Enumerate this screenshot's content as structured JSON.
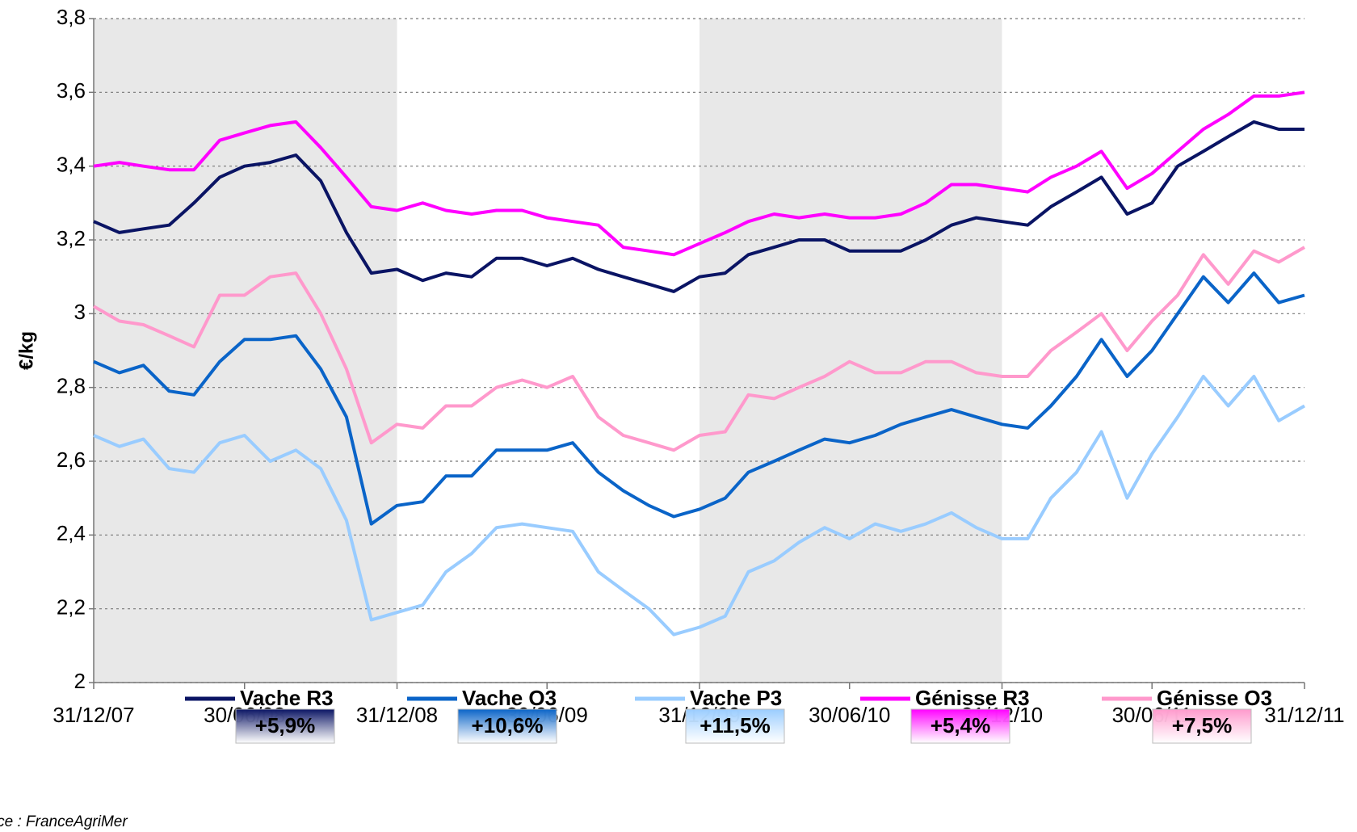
{
  "chart_data": {
    "type": "line",
    "y_label": "€/kg",
    "source": "Source : FranceAgriMer",
    "x": [
      "31/12/07",
      "31/01/08",
      "29/02/08",
      "31/03/08",
      "30/04/08",
      "31/05/08",
      "30/06/08",
      "31/07/08",
      "31/08/08",
      "30/09/08",
      "31/10/08",
      "30/11/08",
      "31/12/08",
      "31/01/09",
      "28/02/09",
      "31/03/09",
      "30/04/09",
      "31/05/09",
      "30/06/09",
      "31/07/09",
      "31/08/09",
      "30/09/09",
      "31/10/09",
      "30/11/09",
      "31/12/09",
      "31/01/10",
      "28/02/10",
      "31/03/10",
      "30/04/10",
      "31/05/10",
      "30/06/10",
      "31/07/10",
      "31/08/10",
      "30/09/10",
      "31/10/10",
      "30/11/10",
      "31/12/10",
      "31/01/11",
      "28/02/11",
      "31/03/11",
      "30/04/11",
      "31/05/11",
      "30/06/11",
      "31/07/11",
      "31/08/11",
      "30/09/11",
      "31/10/11",
      "30/11/11",
      "31/12/11"
    ],
    "xlim": [
      "31/12/07",
      "31/12/11"
    ],
    "xticks": [
      "31/12/07",
      "30/06/08",
      "31/12/08",
      "30/06/09",
      "31/12/09",
      "30/06/10",
      "31/12/10",
      "30/06/11",
      "31/12/11"
    ],
    "shaded_ranges": [
      [
        "31/12/07",
        "31/12/08"
      ],
      [
        "31/12/09",
        "31/12/10"
      ]
    ],
    "ylim": [
      2,
      3.8
    ],
    "yticks": [
      2,
      {
        "value": 2.2,
        "label": "2,2"
      },
      {
        "value": 2.4,
        "label": "2,4"
      },
      {
        "value": 2.6,
        "label": "2,6"
      },
      {
        "value": 2.8,
        "label": "2,8"
      },
      3,
      {
        "value": 3.2,
        "label": "3,2"
      },
      {
        "value": 3.4,
        "label": "3,4"
      },
      {
        "value": 3.6,
        "label": "3,6"
      },
      {
        "value": 3.8,
        "label": "3,8"
      }
    ],
    "grid": true,
    "series": [
      {
        "name": "Vache R3",
        "color": "#0a1464",
        "change": 5.9,
        "change_label": "+5,9%",
        "values": [
          3.25,
          3.22,
          3.23,
          3.24,
          3.3,
          3.37,
          3.4,
          3.41,
          3.43,
          3.36,
          3.22,
          3.11,
          3.12,
          3.09,
          3.11,
          3.1,
          3.15,
          3.15,
          3.13,
          3.15,
          3.12,
          3.1,
          3.08,
          3.06,
          3.1,
          3.11,
          3.16,
          3.18,
          3.2,
          3.2,
          3.17,
          3.17,
          3.17,
          3.2,
          3.24,
          3.26,
          3.25,
          3.24,
          3.29,
          3.33,
          3.37,
          3.27,
          3.3,
          3.4,
          3.44,
          3.48,
          3.52,
          3.5,
          3.5
        ]
      },
      {
        "name": "Vache O3",
        "color": "#0a64c8",
        "change": 10.6,
        "change_label": "+10,6%",
        "values": [
          2.87,
          2.84,
          2.86,
          2.79,
          2.78,
          2.87,
          2.93,
          2.93,
          2.94,
          2.85,
          2.72,
          2.43,
          2.48,
          2.49,
          2.56,
          2.56,
          2.63,
          2.63,
          2.63,
          2.65,
          2.57,
          2.52,
          2.48,
          2.45,
          2.47,
          2.5,
          2.57,
          2.6,
          2.63,
          2.66,
          2.65,
          2.67,
          2.7,
          2.72,
          2.74,
          2.72,
          2.7,
          2.69,
          2.75,
          2.83,
          2.93,
          2.83,
          2.9,
          3.0,
          3.1,
          3.03,
          3.11,
          3.03,
          3.05
        ]
      },
      {
        "name": "Vache P3",
        "color": "#99ccff",
        "change": 11.5,
        "change_label": "+11,5%",
        "values": [
          2.67,
          2.64,
          2.66,
          2.58,
          2.57,
          2.65,
          2.67,
          2.6,
          2.63,
          2.58,
          2.44,
          2.17,
          2.19,
          2.21,
          2.3,
          2.35,
          2.42,
          2.43,
          2.42,
          2.41,
          2.3,
          2.25,
          2.2,
          2.13,
          2.15,
          2.18,
          2.3,
          2.33,
          2.38,
          2.42,
          2.39,
          2.43,
          2.41,
          2.43,
          2.46,
          2.42,
          2.39,
          2.39,
          2.5,
          2.57,
          2.68,
          2.5,
          2.62,
          2.72,
          2.83,
          2.75,
          2.83,
          2.71,
          2.75
        ]
      },
      {
        "name": "Génisse R3",
        "color": "#ff00ff",
        "change": 5.4,
        "change_label": "+5,4%",
        "values": [
          3.4,
          3.41,
          3.4,
          3.39,
          3.39,
          3.47,
          3.49,
          3.51,
          3.52,
          3.45,
          3.37,
          3.29,
          3.28,
          3.3,
          3.28,
          3.27,
          3.28,
          3.28,
          3.26,
          3.25,
          3.24,
          3.18,
          3.17,
          3.16,
          3.19,
          3.22,
          3.25,
          3.27,
          3.26,
          3.27,
          3.26,
          3.26,
          3.27,
          3.3,
          3.35,
          3.35,
          3.34,
          3.33,
          3.37,
          3.4,
          3.44,
          3.34,
          3.38,
          3.44,
          3.5,
          3.54,
          3.59,
          3.59,
          3.6
        ]
      },
      {
        "name": "Génisse O3",
        "color": "#ff99cc",
        "change": 7.5,
        "change_label": "+7,5%",
        "values": [
          3.02,
          2.98,
          2.97,
          2.94,
          2.91,
          3.05,
          3.05,
          3.1,
          3.11,
          3.0,
          2.85,
          2.65,
          2.7,
          2.69,
          2.75,
          2.75,
          2.8,
          2.82,
          2.8,
          2.83,
          2.72,
          2.67,
          2.65,
          2.63,
          2.67,
          2.68,
          2.78,
          2.77,
          2.8,
          2.83,
          2.87,
          2.84,
          2.84,
          2.87,
          2.87,
          2.84,
          2.83,
          2.83,
          2.9,
          2.95,
          3.0,
          2.9,
          2.98,
          3.05,
          3.16,
          3.08,
          3.17,
          3.14,
          3.18
        ]
      }
    ]
  }
}
